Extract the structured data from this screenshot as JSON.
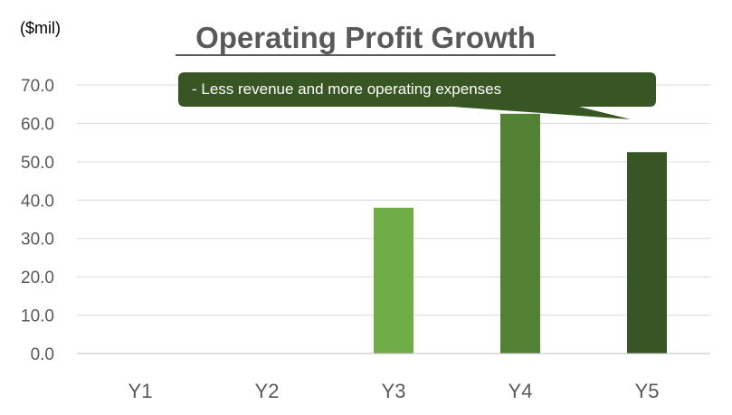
{
  "chart_data": {
    "type": "bar",
    "title": "Operating Profit Growth",
    "unit_label": "($mil)",
    "xlabel": "",
    "ylabel": "",
    "categories": [
      "Y1",
      "Y2",
      "Y3",
      "Y4",
      "Y5"
    ],
    "values": [
      0,
      0,
      38,
      62.5,
      52.5
    ],
    "bar_colors": [
      "#70AD47",
      "#70AD47",
      "#70AD47",
      "#548235",
      "#375623"
    ],
    "ylim": [
      0,
      70
    ],
    "yticks": [
      0,
      10,
      20,
      30,
      40,
      50,
      60,
      70
    ],
    "ytick_labels": [
      "0.0",
      "10.0",
      "20.0",
      "30.0",
      "40.0",
      "50.0",
      "60.0",
      "70.0"
    ],
    "grid": true,
    "annotation": {
      "text": "- Less revenue  and more operating expenses",
      "points_to": "Y5",
      "color": "#375623"
    }
  }
}
